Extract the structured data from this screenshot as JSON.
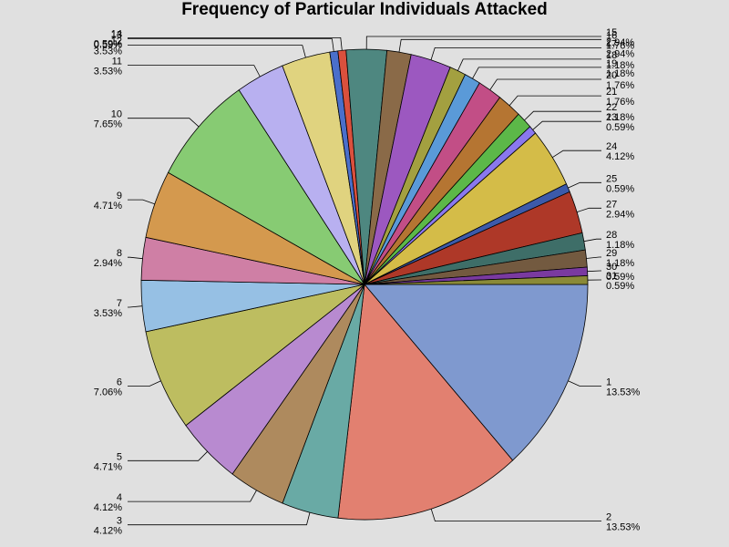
{
  "chart_data": {
    "type": "pie",
    "title": "Frequency of Particular Individuals Attacked",
    "start_angle_deg": 0,
    "direction": "clockwise",
    "slices": [
      {
        "label": "1",
        "percent_label": "13.53%",
        "value": 13.53,
        "color": "#7f99cf"
      },
      {
        "label": "2",
        "percent_label": "13.53%",
        "value": 13.53,
        "color": "#e28070"
      },
      {
        "label": "3",
        "percent_label": "4.12%",
        "value": 4.12,
        "color": "#69aaa5"
      },
      {
        "label": "4",
        "percent_label": "4.12%",
        "value": 4.12,
        "color": "#ae8a5e"
      },
      {
        "label": "5",
        "percent_label": "4.71%",
        "value": 4.71,
        "color": "#b88ad0"
      },
      {
        "label": "6",
        "percent_label": "7.06%",
        "value": 7.06,
        "color": "#bdbd60"
      },
      {
        "label": "7",
        "percent_label": "3.53%",
        "value": 3.53,
        "color": "#96c0e4"
      },
      {
        "label": "8",
        "percent_label": "2.94%",
        "value": 2.94,
        "color": "#cf7fa5"
      },
      {
        "label": "9",
        "percent_label": "4.71%",
        "value": 4.71,
        "color": "#d4994e"
      },
      {
        "label": "10",
        "percent_label": "7.65%",
        "value": 7.65,
        "color": "#87cb73"
      },
      {
        "label": "11",
        "percent_label": "3.53%",
        "value": 3.53,
        "color": "#b8b0f0"
      },
      {
        "label": "12",
        "percent_label": "3.53%",
        "value": 3.53,
        "color": "#e0d37f"
      },
      {
        "label": "13",
        "percent_label": "0.59%",
        "value": 0.59,
        "color": "#4a6fcb"
      },
      {
        "label": "14",
        "percent_label": "0.59%",
        "value": 0.59,
        "color": "#da503d"
      },
      {
        "label": "15",
        "percent_label": "2.94%",
        "value": 2.94,
        "color": "#4e8780"
      },
      {
        "label": "16",
        "percent_label": "1.76%",
        "value": 1.76,
        "color": "#8a6a48"
      },
      {
        "label": "17",
        "percent_label": "2.94%",
        "value": 2.94,
        "color": "#9c58c0"
      },
      {
        "label": "18",
        "percent_label": "1.18%",
        "value": 1.18,
        "color": "#a3a040"
      },
      {
        "label": "19",
        "percent_label": "1.18%",
        "value": 1.18,
        "color": "#5a9ad8"
      },
      {
        "label": "20",
        "percent_label": "1.76%",
        "value": 1.76,
        "color": "#c24e86"
      },
      {
        "label": "21",
        "percent_label": "1.76%",
        "value": 1.76,
        "color": "#b57532"
      },
      {
        "label": "22",
        "percent_label": "1.18%",
        "value": 1.18,
        "color": "#5cb848"
      },
      {
        "label": "23",
        "percent_label": "0.59%",
        "value": 0.59,
        "color": "#8a78ee"
      },
      {
        "label": "24",
        "percent_label": "4.12%",
        "value": 4.12,
        "color": "#d4bc48"
      },
      {
        "label": "25",
        "percent_label": "0.59%",
        "value": 0.59,
        "color": "#3c5aaa"
      },
      {
        "label": "27",
        "percent_label": "2.94%",
        "value": 2.94,
        "color": "#ae3828"
      },
      {
        "label": "28",
        "percent_label": "1.18%",
        "value": 1.18,
        "color": "#3e6e68"
      },
      {
        "label": "29",
        "percent_label": "1.18%",
        "value": 1.18,
        "color": "#735a40"
      },
      {
        "label": "30",
        "percent_label": "0.59%",
        "value": 0.59,
        "color": "#7a3aa0"
      },
      {
        "label": "31",
        "percent_label": "0.59%",
        "value": 0.59,
        "color": "#8a8a38"
      }
    ]
  }
}
